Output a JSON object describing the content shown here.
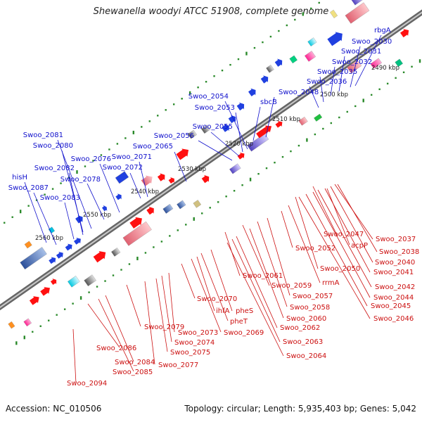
{
  "title": "Shewanella woodyi ATCC 51908, complete genome",
  "footer": {
    "accession": "Accession: NC_010506",
    "summary": "Topology: circular; Length: 5,935,403 bp; Genes: 5,042"
  },
  "colors": {
    "backbone": "#8a8a8a",
    "top_labels": "#1010cc",
    "bottom_labels": "#cc1010",
    "ticks": "#2a8a2a"
  },
  "scale_labels": [
    "2490 kbp",
    "2500 kbp",
    "2510 kbp",
    "2520 kbp",
    "2530 kbp",
    "2540 kbp",
    "2550 kbp",
    "2560 kbp"
  ],
  "top_genes": [
    "rbgA",
    "Swoo_2030",
    "Swoo_2031",
    "Swoo_2032",
    "Swoo_2035",
    "Swoo_2036",
    "Swoo_2048",
    "sbcB",
    "Swoo_2054",
    "Swoo_2053",
    "Swoo_2055",
    "Swoo_2056",
    "Swoo_2065",
    "Swoo_2071",
    "Swoo_2072",
    "Swoo_2076",
    "Swoo_2078",
    "Swoo_2081",
    "Swoo_2080",
    "Swoo_2082",
    "Swoo_2083",
    "hisH",
    "Swoo_2087"
  ],
  "bottom_genes": [
    "Swoo_2037",
    "Swoo_2038",
    "Swoo_2040",
    "Swoo_2041",
    "Swoo_2042",
    "Swoo_2044",
    "Swoo_2045",
    "Swoo_2046",
    "Swoo_2047",
    "acpP",
    "Swoo_2050",
    "Swoo_2052",
    "rrmA",
    "Swoo_2057",
    "Swoo_2058",
    "Swoo_2059",
    "Swoo_2060",
    "Swoo_2061",
    "Swoo_2062",
    "Swoo_2063",
    "Swoo_2064",
    "pheS",
    "pheT",
    "ihfA",
    "Swoo_2069",
    "Swoo_2070",
    "Swoo_2073",
    "Swoo_2074",
    "Swoo_2075",
    "Swoo_2077",
    "Swoo_2079",
    "Swoo_2084",
    "Swoo_2085",
    "Swoo_2086",
    "Swoo_2094"
  ]
}
